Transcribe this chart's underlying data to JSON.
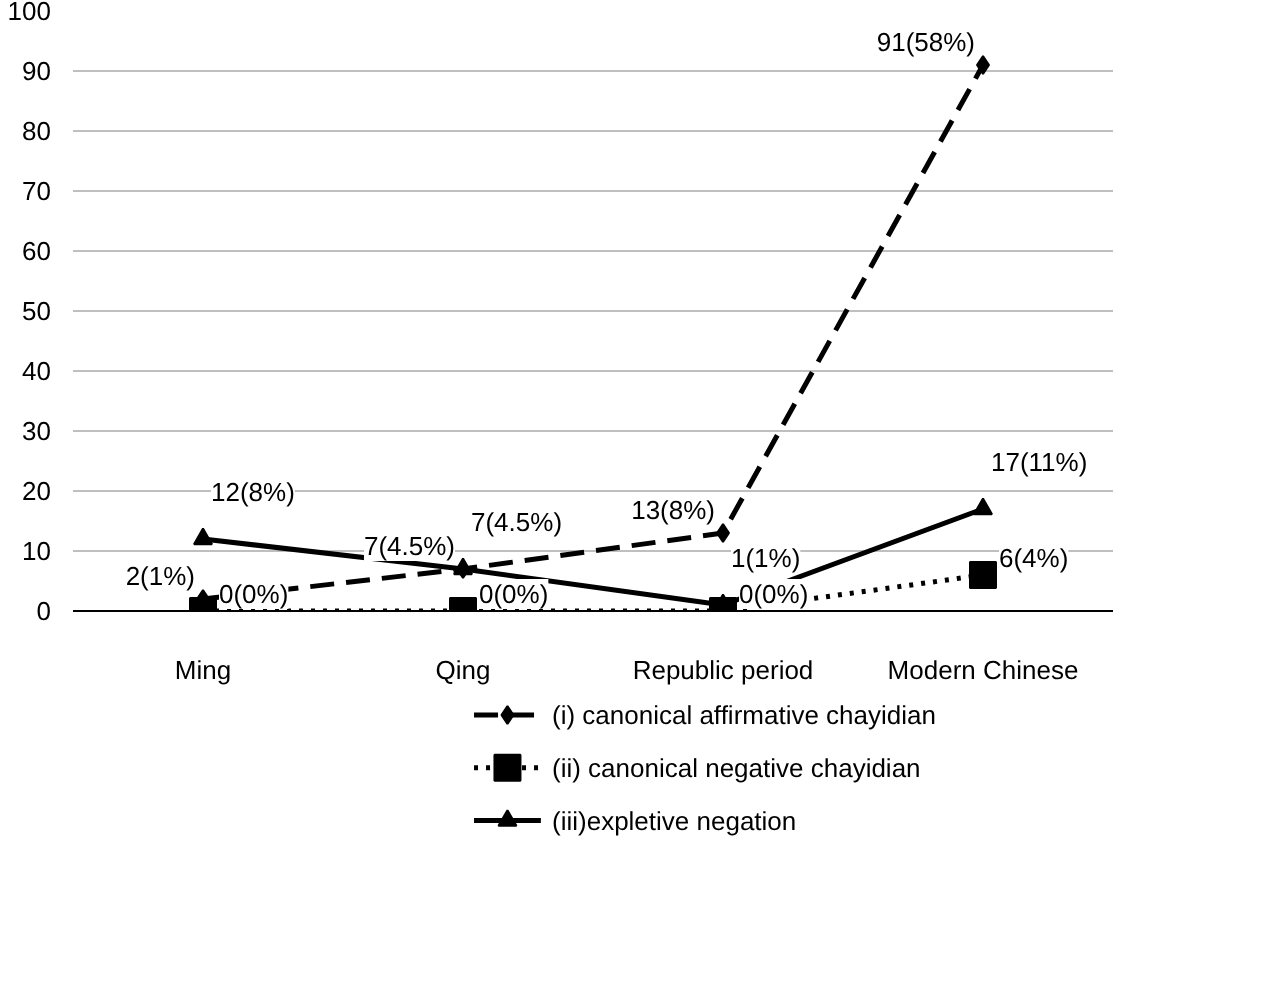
{
  "chart_data": {
    "type": "line",
    "categories": [
      "Ming",
      "Qing",
      "Republic period",
      "Modern Chinese"
    ],
    "ylim": [
      0,
      100
    ],
    "yticks": [
      0,
      10,
      20,
      30,
      40,
      50,
      60,
      70,
      80,
      90,
      100
    ],
    "grid": "y",
    "legend": "bottom",
    "series": [
      {
        "name": "(i) canonical affirmative chayidian",
        "color": "#000000",
        "marker": "diamond",
        "line_style": "dashed",
        "values": [
          2,
          7,
          13,
          91
        ],
        "value_labels": [
          "2(1%)",
          "7(4.5%)",
          "13(8%)",
          "91(58%)"
        ]
      },
      {
        "name": "(ii) canonical negative chayidian",
        "color": "#000000",
        "marker": "square",
        "line_style": "dotted",
        "values": [
          0,
          0,
          0,
          6
        ],
        "value_labels": [
          "0(0%)",
          "0(0%)",
          "0(0%)",
          "6(4%)"
        ]
      },
      {
        "name": "(iii)expletive negation",
        "color": "#000000",
        "marker": "triangle",
        "line_style": "solid",
        "values": [
          12,
          7,
          1,
          17
        ],
        "value_labels": [
          "12(8%)",
          "7(4.5%)",
          "1(1%)",
          "17(11%)"
        ]
      }
    ]
  }
}
